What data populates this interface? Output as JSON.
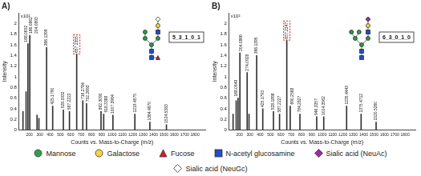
{
  "chart_data": [
    {
      "type": "bar",
      "title": "A)",
      "x_label": "Counts vs. Mass-to-Charge (m/z)",
      "y_label": "Intensity",
      "y_scale_note": "x10²",
      "composition": "5_3_1_0_1",
      "highlighted_peak": 657.2355,
      "color": "#333333",
      "grid": false,
      "x": [
        138.05,
        168.0652,
        186.0862,
        204.0893,
        274.09,
        292.1,
        366.1399,
        425.179,
        528.1932,
        587.2222,
        657.2355,
        716.2784,
        752.2693,
        892.309,
        918.3388,
        1007.3964,
        1219.4575,
        1364.497,
        1524.5383
      ],
      "values": [
        0.35,
        0.72,
        1.62,
        1.78,
        0.28,
        0.22,
        1.55,
        0.45,
        0.38,
        0.35,
        1.42,
        0.55,
        0.5,
        0.35,
        0.3,
        0.28,
        0.3,
        0.15,
        0.1
      ],
      "peak_labels": [
        null,
        "168.0652",
        "186.0862",
        "204.0893",
        null,
        null,
        "366.1399",
        "425.1790",
        "528.1932",
        "587.2222",
        "657.2355",
        "716.2784",
        "752.2693",
        "892.3090",
        "918.3388",
        "1007.3964",
        "1219.4575",
        "1364.4970",
        "1524.5383"
      ],
      "xlim": [
        100,
        1900
      ],
      "xticks": [
        200,
        300,
        400,
        500,
        600,
        700,
        800,
        900,
        1000,
        1100,
        1200,
        1300,
        1400,
        1500,
        1600,
        1700,
        1800
      ],
      "ylim": [
        0,
        2.2
      ],
      "yticks": [
        0,
        0.2,
        0.4,
        0.6,
        0.8,
        1,
        1.2,
        1.4,
        1.6,
        1.8,
        2
      ]
    },
    {
      "type": "bar",
      "title": "B)",
      "x_label": "Counts vs. Mass-to-Charge (m/z)",
      "y_label": "Intensity",
      "y_scale_note": "x10²",
      "composition": "6_3_0_1_0",
      "highlighted_peak": 657.2347,
      "color": "#333333",
      "grid": false,
      "x": [
        138.05,
        168.0649,
        186.08,
        204.0866,
        274.0928,
        292.1,
        366.1395,
        425.1793,
        528.1898,
        587.2227,
        657.2347,
        690.2568,
        784.2827,
        946.3357,
        1014.3562,
        1235.4443,
        1375.4712,
        1520.526
      ],
      "values": [
        0.3,
        0.55,
        0.6,
        1.45,
        1.08,
        0.3,
        1.4,
        0.4,
        0.35,
        0.3,
        1.68,
        0.45,
        0.3,
        0.25,
        0.25,
        0.45,
        0.3,
        0.15
      ],
      "peak_labels": [
        null,
        "168.0649",
        null,
        "204.0866",
        "274.0928",
        null,
        "366.1395",
        "425.1793",
        "528.1898",
        "587.2227",
        "657.2347",
        "690.2568",
        "784.2827",
        "946.3357",
        "1014.3562",
        "1235.4443",
        "1375.4712",
        "1520.5260"
      ],
      "xlim": [
        100,
        1900
      ],
      "xticks": [
        200,
        300,
        400,
        500,
        600,
        700,
        800,
        900,
        1000,
        1100,
        1200,
        1300,
        1400,
        1500,
        1600,
        1700,
        1800
      ],
      "ylim": [
        0,
        2.2
      ],
      "yticks": [
        0,
        0.2,
        0.4,
        0.6,
        0.8,
        1,
        1.2,
        1.4,
        1.6,
        1.8,
        2
      ]
    }
  ],
  "legend_items": [
    {
      "name": "Mannose",
      "color": "#2e9e4f",
      "marker": "circle"
    },
    {
      "name": "Galactose",
      "color": "#f5d547",
      "marker": "circle"
    },
    {
      "name": "Fucose",
      "color": "#d0202a",
      "marker": "triangle"
    },
    {
      "name": "N-acetyl glucosamine",
      "color": "#1f4fc4",
      "marker": "square"
    },
    {
      "name": "Sialic acid (NeuAc)",
      "color": "#9b2d9e",
      "marker": "diamond"
    },
    {
      "name": "Sialic acid (NeuGc)",
      "color": "#ffffff",
      "marker": "diamond"
    }
  ]
}
